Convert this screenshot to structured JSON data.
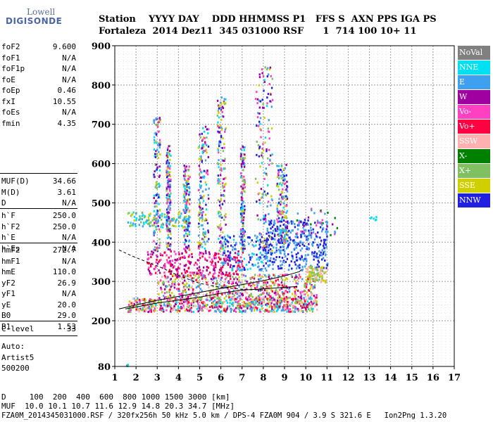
{
  "logo": {
    "line1": "Lowell",
    "line2": "DIGISONDE"
  },
  "header": {
    "line1": "Station    YYYY DAY    DDD HHMMSS P1   FFS S  AXN PPS IGA PS",
    "line2": "Fortaleza  2014 Dez11  345 031000 RSF      1  714 100 10+ 11"
  },
  "params_group1": [
    {
      "key": "foF2",
      "value": "9.600"
    },
    {
      "key": "foF1",
      "value": "N/A"
    },
    {
      "key": "foF1p",
      "value": "N/A"
    },
    {
      "key": "foE",
      "value": "N/A"
    },
    {
      "key": "foEp",
      "value": "0.46"
    },
    {
      "key": "fxI",
      "value": "10.55"
    },
    {
      "key": "foEs",
      "value": "N/A"
    },
    {
      "key": "fmin",
      "value": "4.35"
    }
  ],
  "params_group2": [
    {
      "key": "MUF(D)",
      "value": "34.66"
    },
    {
      "key": "M(D)",
      "value": "3.61"
    },
    {
      "key": "D",
      "value": "N/A"
    }
  ],
  "params_group3": [
    {
      "key": "h`F",
      "value": "250.0"
    },
    {
      "key": "h`F2",
      "value": "250.0"
    },
    {
      "key": "h`E",
      "value": "N/A"
    },
    {
      "key": "h`Es",
      "value": "N/A"
    }
  ],
  "params_group4": [
    {
      "key": "hmF2",
      "value": "272.7"
    },
    {
      "key": "hmF1",
      "value": "N/A"
    },
    {
      "key": "hmE",
      "value": "110.0"
    },
    {
      "key": "yF2",
      "value": "26.9"
    },
    {
      "key": "yF1",
      "value": "N/A"
    },
    {
      "key": "yE",
      "value": "20.0"
    },
    {
      "key": "B0",
      "value": "29.0"
    },
    {
      "key": "B1",
      "value": "1.53"
    }
  ],
  "params_group5": [
    {
      "key": "C-level",
      "value": "33"
    }
  ],
  "auto": {
    "label": "Auto:",
    "name": "Artist5",
    "code": "500200"
  },
  "legend": [
    {
      "label": "NoVal",
      "color": "#808080"
    },
    {
      "label": "NNE",
      "color": "#00e0f0"
    },
    {
      "label": "E",
      "color": "#40a0f0"
    },
    {
      "label": "W",
      "color": "#a000a0"
    },
    {
      "label": "Vo-",
      "color": "#ff40c0"
    },
    {
      "label": "Vo+",
      "color": "#ff0040"
    },
    {
      "label": "SSW",
      "color": "#ffb0b0"
    },
    {
      "label": "X-",
      "color": "#008000"
    },
    {
      "label": "X+",
      "color": "#80c060"
    },
    {
      "label": "SSE",
      "color": "#d0d000"
    },
    {
      "label": "NNW",
      "color": "#2020e0"
    }
  ],
  "chart_data": {
    "type": "scatter",
    "x_ticks": [
      "1",
      "2",
      "3",
      "4",
      "5",
      "6",
      "7",
      "8",
      "9",
      "10",
      "11",
      "12",
      "13",
      "14",
      "15",
      "16",
      "17"
    ],
    "y_ticks": [
      "80",
      "200",
      "300",
      "400",
      "500",
      "600",
      "700",
      "800",
      "900"
    ],
    "xlim": [
      1,
      17
    ],
    "ylim": [
      80,
      900
    ],
    "grid": true,
    "legend_position": "right"
  },
  "bottom": {
    "line1": "D     100  200  400  600  800 1000 1500 3000 [km]",
    "line2": "MUF  10.0 10.1 10.7 11.6 12.9 14.8 20.3 34.7 [MHz]",
    "line3": "FZA0M_2014345031000.RSF / 320fx256h 50 kHz 5.0 km / DPS-4 FZA0M 904 / 3.9 S 321.6 E   Ion2Png 1.3.20"
  }
}
